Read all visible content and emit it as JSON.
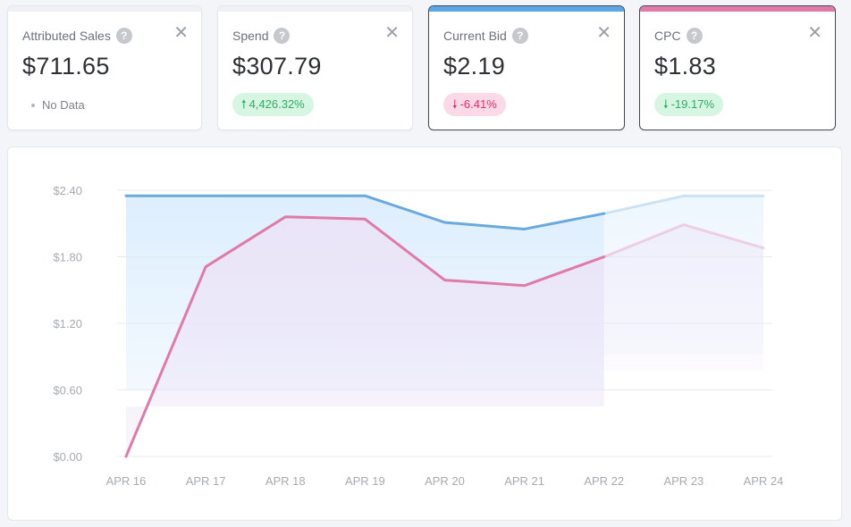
{
  "cards": [
    {
      "label": "Attributed Sales",
      "value": "$711.65",
      "status": "No Data",
      "accent": ""
    },
    {
      "label": "Spend",
      "value": "$307.79",
      "change": "4,426.32%",
      "direction": "up",
      "accent": ""
    },
    {
      "label": "Current Bid",
      "value": "$2.19",
      "change": "-6.41%",
      "direction": "down",
      "accent": "#5aa6e6"
    },
    {
      "label": "CPC",
      "value": "$1.83",
      "change": "-19.17%",
      "direction": "down",
      "accent": "#e07aa8"
    }
  ],
  "icons": {
    "help": "question-circle-icon",
    "close": "close-x-icon",
    "arrow_up": "arrow-up-icon",
    "arrow_down": "arrow-down-icon"
  },
  "chart_data": {
    "type": "line",
    "categories": [
      "APR 16",
      "APR 17",
      "APR 18",
      "APR 19",
      "APR 20",
      "APR 21",
      "APR 22",
      "APR 23",
      "APR 24"
    ],
    "y_ticks": [
      "$0.00",
      "$0.60",
      "$1.20",
      "$1.80",
      "$2.40"
    ],
    "ylim": [
      0,
      2.4
    ],
    "series": [
      {
        "values": [
          2.35,
          2.35,
          2.35,
          2.35,
          2.11,
          2.05,
          2.19,
          2.35,
          2.35
        ],
        "color": "#6aa9de",
        "fill": "#d9ecfd"
      },
      {
        "values": [
          0.0,
          1.71,
          2.16,
          2.14,
          1.59,
          1.54,
          1.8,
          2.09,
          1.88
        ],
        "color": "#e07aa8",
        "fill": "#ece3f7"
      }
    ],
    "projected_from_index": 6,
    "grid": true,
    "legend": "none"
  }
}
